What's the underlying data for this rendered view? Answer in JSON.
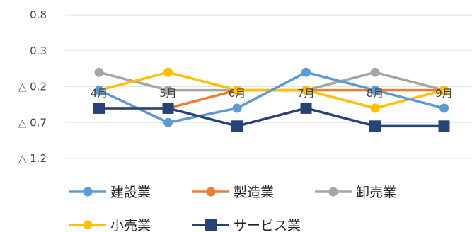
{
  "chart_data": {
    "type": "line",
    "title": "",
    "xlabel": "",
    "ylabel": "",
    "categories": [
      "4月",
      "5月",
      "6月",
      "7月",
      "8月",
      "9月"
    ],
    "y_ticks": [
      {
        "value": 0.8,
        "label": "0.8"
      },
      {
        "value": 0.3,
        "label": "0.3"
      },
      {
        "value": -0.2,
        "label": "△ 0.2"
      },
      {
        "value": -0.7,
        "label": "△ 0.7"
      },
      {
        "value": -1.2,
        "label": "△ 1.2"
      }
    ],
    "ylim": [
      -1.2,
      0.8
    ],
    "grid": true,
    "legend_position": "bottom",
    "series": [
      {
        "name": "卸売業",
        "color": "#a5a5a5",
        "marker": "circle",
        "values": [
          0.0,
          -0.25,
          -0.25,
          -0.25,
          0.0,
          -0.25
        ]
      },
      {
        "name": "製造業",
        "color": "#ed7d31",
        "marker": "circle",
        "values": [
          -0.5,
          -0.5,
          -0.25,
          -0.25,
          -0.25,
          -0.25
        ]
      },
      {
        "name": "小売業",
        "color": "#ffc000",
        "marker": "circle",
        "values": [
          -0.25,
          0.0,
          -0.25,
          -0.25,
          -0.5,
          -0.25
        ]
      },
      {
        "name": "建設業",
        "color": "#5b9bd5",
        "marker": "circle",
        "values": [
          -0.25,
          -0.7,
          -0.5,
          0.0,
          -0.25,
          -0.5
        ]
      },
      {
        "name": "サービス業",
        "color": "#264478",
        "marker": "square",
        "values": [
          -0.5,
          -0.5,
          -0.75,
          -0.5,
          -0.75,
          -0.75
        ]
      }
    ],
    "legend_order": [
      "建設業",
      "製造業",
      "卸売業",
      "小売業",
      "サービス業"
    ]
  }
}
